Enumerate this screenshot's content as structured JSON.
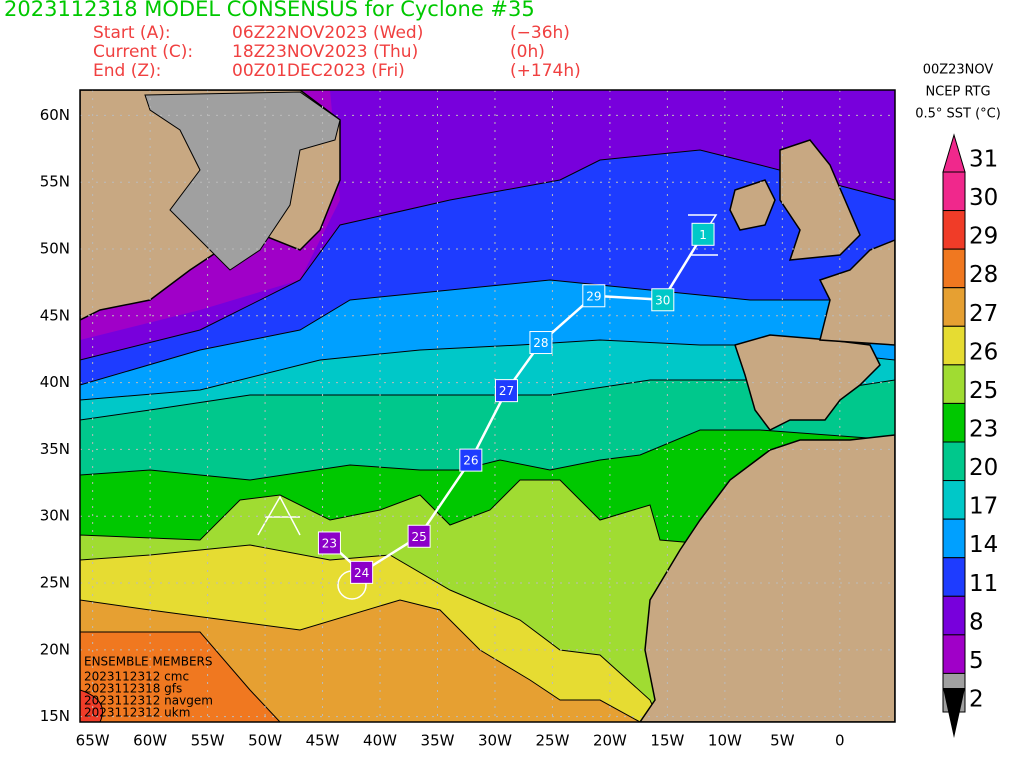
{
  "header": {
    "title": "2023112318 MODEL CONSENSUS for Cyclone #35",
    "rows": [
      [
        "Start (A):",
        "06Z22NOV2023 (Wed)",
        "(−36h)"
      ],
      [
        "Current (C):",
        "18Z23NOV2023 (Thu)",
        "(0h)"
      ],
      [
        "End (Z):",
        "00Z01DEC2023 (Fri)",
        "(+174h)"
      ]
    ]
  },
  "legend": {
    "lines": [
      "00Z23NOV",
      "NCEP RTG",
      "0.5° SST (°C)"
    ],
    "ticks": [
      31,
      30,
      29,
      28,
      27,
      26,
      25,
      23,
      20,
      17,
      14,
      11,
      8,
      5,
      2
    ],
    "colors": [
      "#f0288c",
      "#f03c28",
      "#f07820",
      "#e6a032",
      "#e6dc32",
      "#a0dc32",
      "#00c800",
      "#00c88c",
      "#00c8c8",
      "#00a0ff",
      "#1e3cff",
      "#7800dc",
      "#a000c8",
      "#a0a0a0"
    ]
  },
  "map": {
    "lonlim": [
      -66.1,
      4.8
    ],
    "latlim": [
      14.6,
      61.9
    ],
    "lon_ticks": [
      {
        "value": -65,
        "label": "65W"
      },
      {
        "value": -60,
        "label": "60W"
      },
      {
        "value": -55,
        "label": "55W"
      },
      {
        "value": -50,
        "label": "50W"
      },
      {
        "value": -45,
        "label": "45W"
      },
      {
        "value": -40,
        "label": "40W"
      },
      {
        "value": -35,
        "label": "35W"
      },
      {
        "value": -30,
        "label": "30W"
      },
      {
        "value": -25,
        "label": "25W"
      },
      {
        "value": -20,
        "label": "20W"
      },
      {
        "value": -15,
        "label": "15W"
      },
      {
        "value": -10,
        "label": "10W"
      },
      {
        "value": -5,
        "label": "5W"
      },
      0
    ],
    "lat_ticks": [
      {
        "value": 60,
        "label": "60N"
      },
      {
        "value": 55,
        "label": "55N"
      },
      {
        "value": 50,
        "label": "50N"
      },
      {
        "value": 45,
        "label": "45N"
      },
      {
        "value": 40,
        "label": "40N"
      },
      {
        "value": 35,
        "label": "35N"
      },
      {
        "value": 30,
        "label": "30N"
      },
      {
        "value": 25,
        "label": "25N"
      },
      {
        "value": 20,
        "label": "20N"
      },
      {
        "value": 15,
        "label": "15N"
      }
    ]
  },
  "track": [
    {
      "label": "23",
      "lon": -44.4,
      "lat": 28.0,
      "color": "#8c00c8"
    },
    {
      "label": "24",
      "lon": -41.6,
      "lat": 25.8,
      "color": "#8c00c8"
    },
    {
      "label": "25",
      "lon": -36.6,
      "lat": 28.5,
      "color": "#8c00c8"
    },
    {
      "label": "26",
      "lon": -32.1,
      "lat": 34.2,
      "color": "#1e3cff"
    },
    {
      "label": "27",
      "lon": -29.0,
      "lat": 39.4,
      "color": "#1e3cff"
    },
    {
      "label": "28",
      "lon": -26.0,
      "lat": 43.0,
      "color": "#00a0ff"
    },
    {
      "label": "29",
      "lon": -21.4,
      "lat": 46.5,
      "color": "#00a0ff"
    },
    {
      "label": "30",
      "lon": -15.4,
      "lat": 46.2,
      "color": "#00c8c8"
    },
    {
      "label": "1",
      "lon": -11.9,
      "lat": 51.1,
      "color": "#00c8c8"
    }
  ],
  "ensemble": {
    "title": "ENSEMBLE MEMBERS",
    "members": [
      "2023112312 cmc",
      "2023112318 gfs",
      "2023112312 navgem",
      "2023112312 ukm"
    ]
  }
}
